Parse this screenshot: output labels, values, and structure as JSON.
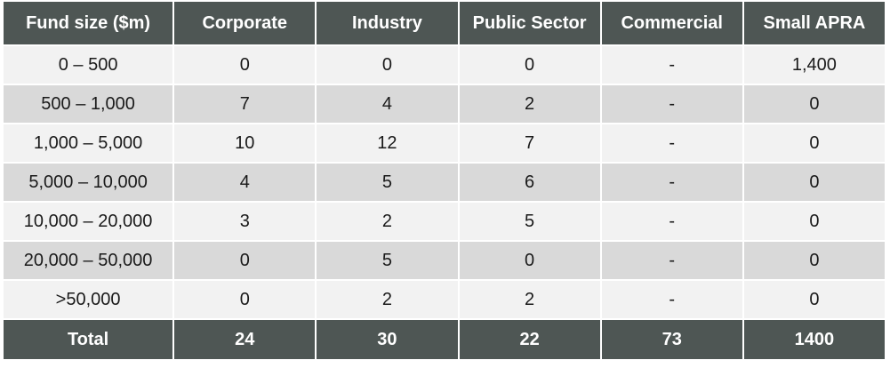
{
  "table": {
    "header": [
      "Fund size ($m)",
      "Corporate",
      "Industry",
      "Public Sector",
      "Commercial",
      "Small APRA"
    ],
    "rows": [
      [
        "0 – 500",
        "0",
        "0",
        "0",
        "-",
        "1,400"
      ],
      [
        "500 – 1,000",
        "7",
        "4",
        "2",
        "-",
        "0"
      ],
      [
        "1,000 – 5,000",
        "10",
        "12",
        "7",
        "-",
        "0"
      ],
      [
        "5,000 – 10,000",
        "4",
        "5",
        "6",
        "-",
        "0"
      ],
      [
        "10,000 – 20,000",
        "3",
        "2",
        "5",
        "-",
        "0"
      ],
      [
        "20,000 – 50,000",
        "0",
        "5",
        "0",
        "-",
        "0"
      ],
      [
        ">50,000",
        "0",
        "2",
        "2",
        "-",
        "0"
      ]
    ],
    "total": [
      "Total",
      "24",
      "30",
      "22",
      "73",
      "1400"
    ]
  }
}
